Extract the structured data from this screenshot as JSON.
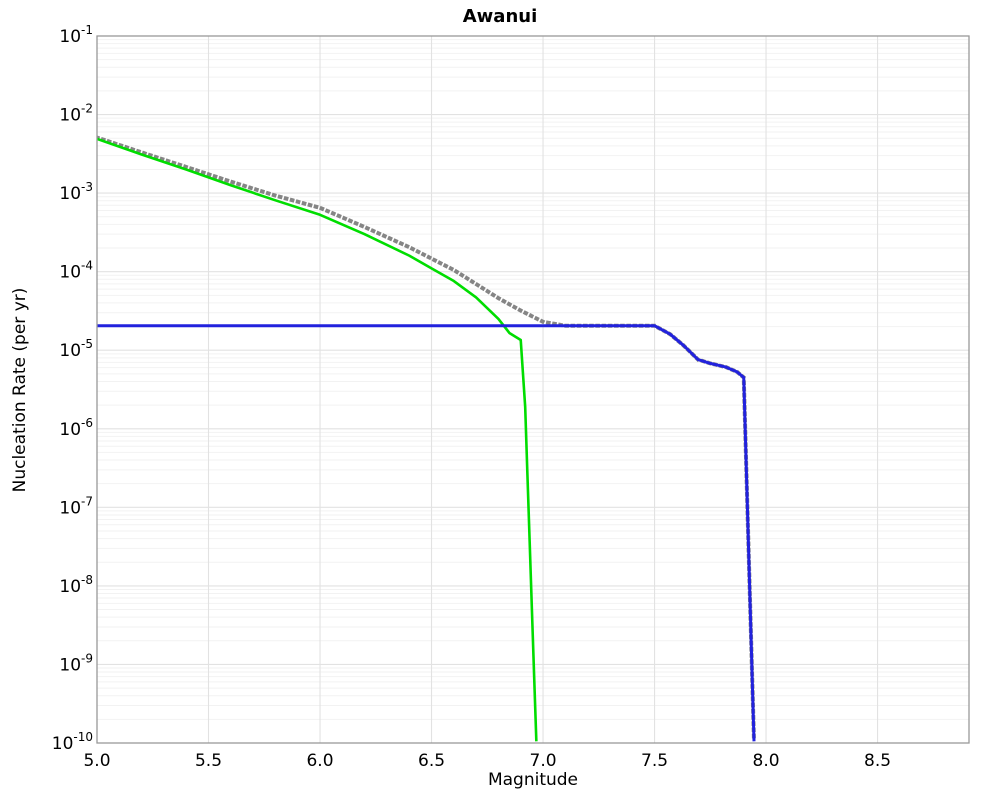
{
  "figure": {
    "title": "Awanui",
    "xlabel": "Magnitude",
    "ylabel": "Nucleation Rate (per yr)"
  },
  "chart_data": {
    "type": "line",
    "title": "Awanui",
    "xlabel": "Magnitude",
    "ylabel": "Nucleation Rate (per yr)",
    "xlim": [
      5.0,
      8.91
    ],
    "ylim": [
      1e-10,
      0.1
    ],
    "y_scale": "log",
    "grid": "major and minor gridlines, light gray",
    "legend": "none",
    "x_ticks": [
      5.0,
      5.5,
      6.0,
      6.5,
      7.0,
      7.5,
      8.0,
      8.5
    ],
    "x_tick_labels": [
      "5.0",
      "5.5",
      "6.0",
      "6.5",
      "7.0",
      "7.5",
      "8.0",
      "8.5"
    ],
    "y_tick_exponents": [
      -1,
      -2,
      -3,
      -4,
      -5,
      -6,
      -7,
      -8,
      -9,
      -10
    ],
    "colors": {
      "gray_dotted": "#858585",
      "green_solid": "#00dd00",
      "blue_solid": "#2222dd"
    },
    "series": [
      {
        "name": "gray-dotted-total-rate",
        "color": "#858585",
        "style": "dotted",
        "width": 4,
        "points": [
          [
            5.0,
            0.0051
          ],
          [
            5.2,
            0.0033
          ],
          [
            5.4,
            0.00215
          ],
          [
            5.6,
            0.0014
          ],
          [
            5.8,
            0.00093
          ],
          [
            6.0,
            0.00065
          ],
          [
            6.2,
            0.00037
          ],
          [
            6.4,
            0.000205
          ],
          [
            6.6,
            0.000105
          ],
          [
            6.8,
            4.6e-05
          ],
          [
            6.9,
            3.2e-05
          ],
          [
            7.0,
            2.3e-05
          ],
          [
            7.1,
            2.05e-05
          ],
          [
            7.5,
            2.05e-05
          ],
          [
            7.57,
            1.6e-05
          ],
          [
            7.63,
            1.15e-05
          ],
          [
            7.695,
            7.6e-06
          ],
          [
            7.75,
            6.8e-06
          ],
          [
            7.82,
            6.1e-06
          ],
          [
            7.87,
            5.3e-06
          ],
          [
            7.9,
            4.5e-06
          ],
          [
            7.91,
            4.4e-07
          ],
          [
            7.92,
            4.3e-08
          ],
          [
            7.93,
            4.2e-09
          ],
          [
            7.94,
            4.1e-10
          ],
          [
            7.946,
            1.05e-10
          ]
        ]
      },
      {
        "name": "green-solid-rate",
        "color": "#00dd00",
        "style": "solid",
        "width": 2.6,
        "points": [
          [
            5.0,
            0.0049
          ],
          [
            5.2,
            0.0031
          ],
          [
            5.4,
            0.002
          ],
          [
            5.6,
            0.00126
          ],
          [
            5.8,
            0.00081
          ],
          [
            6.0,
            0.00053
          ],
          [
            6.2,
            0.0003
          ],
          [
            6.4,
            0.00016
          ],
          [
            6.5,
            0.00011
          ],
          [
            6.6,
            7.6e-05
          ],
          [
            6.7,
            4.7e-05
          ],
          [
            6.8,
            2.5e-05
          ],
          [
            6.85,
            1.65e-05
          ],
          [
            6.9,
            1.35e-05
          ],
          [
            6.92,
            1.9e-06
          ],
          [
            6.93,
            2.6e-07
          ],
          [
            6.94,
            3.7e-08
          ],
          [
            6.95,
            5.1e-09
          ],
          [
            6.96,
            7.2e-10
          ],
          [
            6.97,
            1.05e-10
          ]
        ]
      },
      {
        "name": "blue-solid-capped-rate",
        "color": "#2222dd",
        "style": "solid",
        "width": 3,
        "points": [
          [
            5.0,
            2.05e-05
          ],
          [
            7.5,
            2.05e-05
          ],
          [
            7.57,
            1.6e-05
          ],
          [
            7.63,
            1.15e-05
          ],
          [
            7.695,
            7.6e-06
          ],
          [
            7.75,
            6.8e-06
          ],
          [
            7.82,
            6.1e-06
          ],
          [
            7.87,
            5.3e-06
          ],
          [
            7.9,
            4.5e-06
          ],
          [
            7.91,
            4.4e-07
          ],
          [
            7.92,
            4.3e-08
          ],
          [
            7.93,
            4.2e-09
          ],
          [
            7.94,
            4.1e-10
          ],
          [
            7.946,
            1.05e-10
          ]
        ]
      }
    ]
  }
}
